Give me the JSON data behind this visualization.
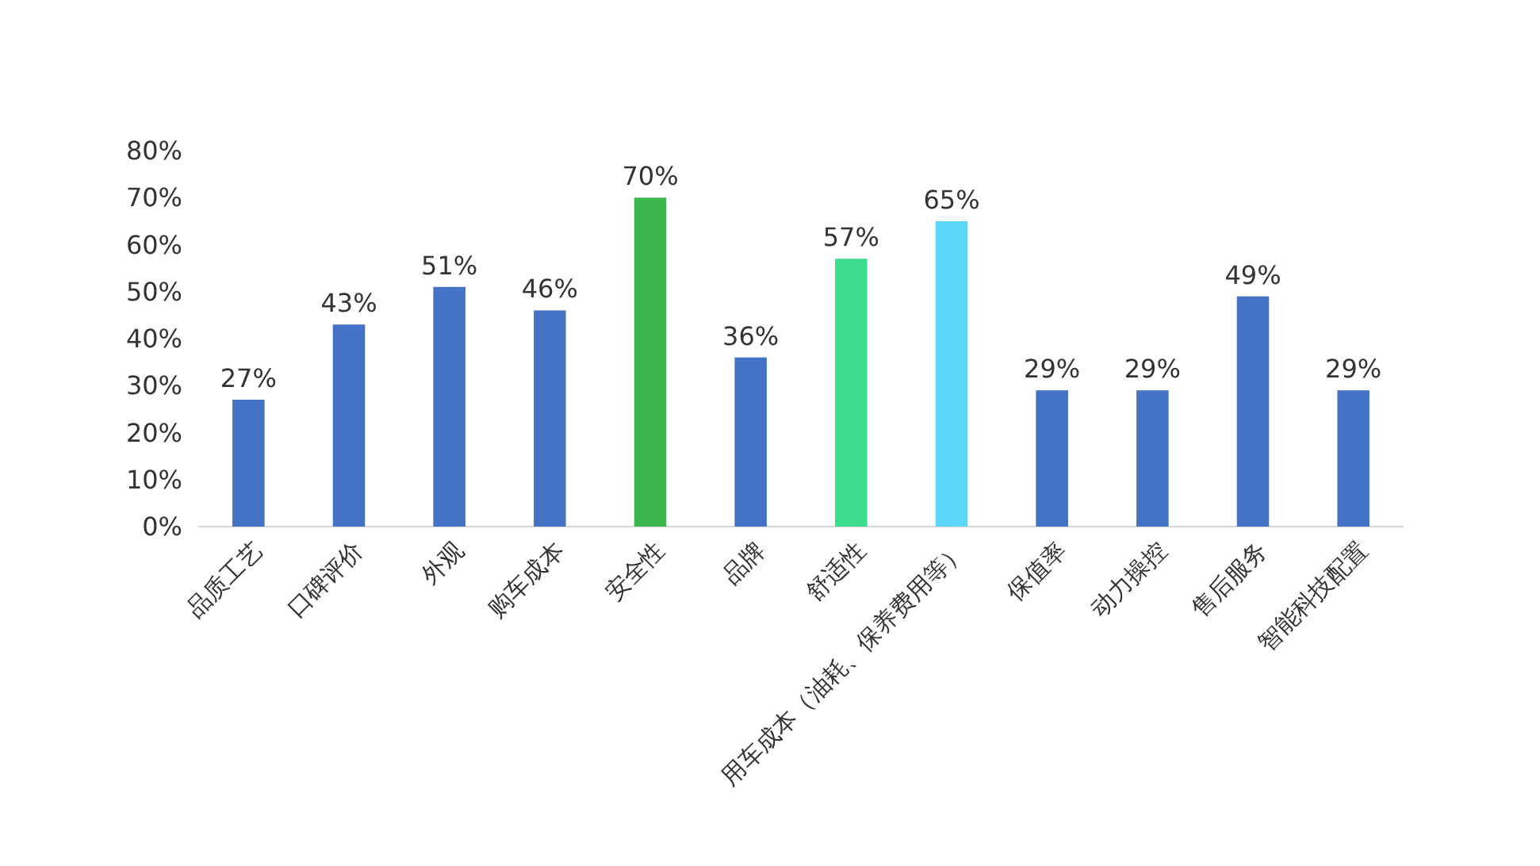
{
  "chart_data": {
    "type": "bar",
    "categories": [
      "品质工艺",
      "口碑评价",
      "外观",
      "购车成本",
      "安全性",
      "品牌",
      "舒适性",
      "用车成本（油耗、保养费用等）",
      "保值率",
      "动力操控",
      "售后服务",
      "智能科技配置"
    ],
    "values": [
      27,
      43,
      51,
      46,
      70,
      36,
      57,
      65,
      29,
      29,
      49,
      29
    ],
    "colors": [
      "#4472c4",
      "#4472c4",
      "#4472c4",
      "#4472c4",
      "#3cb54e",
      "#4472c4",
      "#3ddc8c",
      "#5dd5f7",
      "#4472c4",
      "#4472c4",
      "#4472c4",
      "#4472c4"
    ],
    "value_labels": [
      "27%",
      "43%",
      "51%",
      "46%",
      "70%",
      "36%",
      "57%",
      "65%",
      "29%",
      "29%",
      "49%",
      "29%"
    ],
    "ylim": [
      0,
      80
    ],
    "yticks": [
      {
        "value": 0,
        "label": "0%"
      },
      {
        "value": 10,
        "label": "10%"
      },
      {
        "value": 20,
        "label": "20%"
      },
      {
        "value": 30,
        "label": "30%"
      },
      {
        "value": 40,
        "label": "40%"
      },
      {
        "value": 50,
        "label": "50%"
      },
      {
        "value": 60,
        "label": "60%"
      },
      {
        "value": 70,
        "label": "70%"
      },
      {
        "value": 80,
        "label": "80%"
      }
    ],
    "grid": false
  }
}
